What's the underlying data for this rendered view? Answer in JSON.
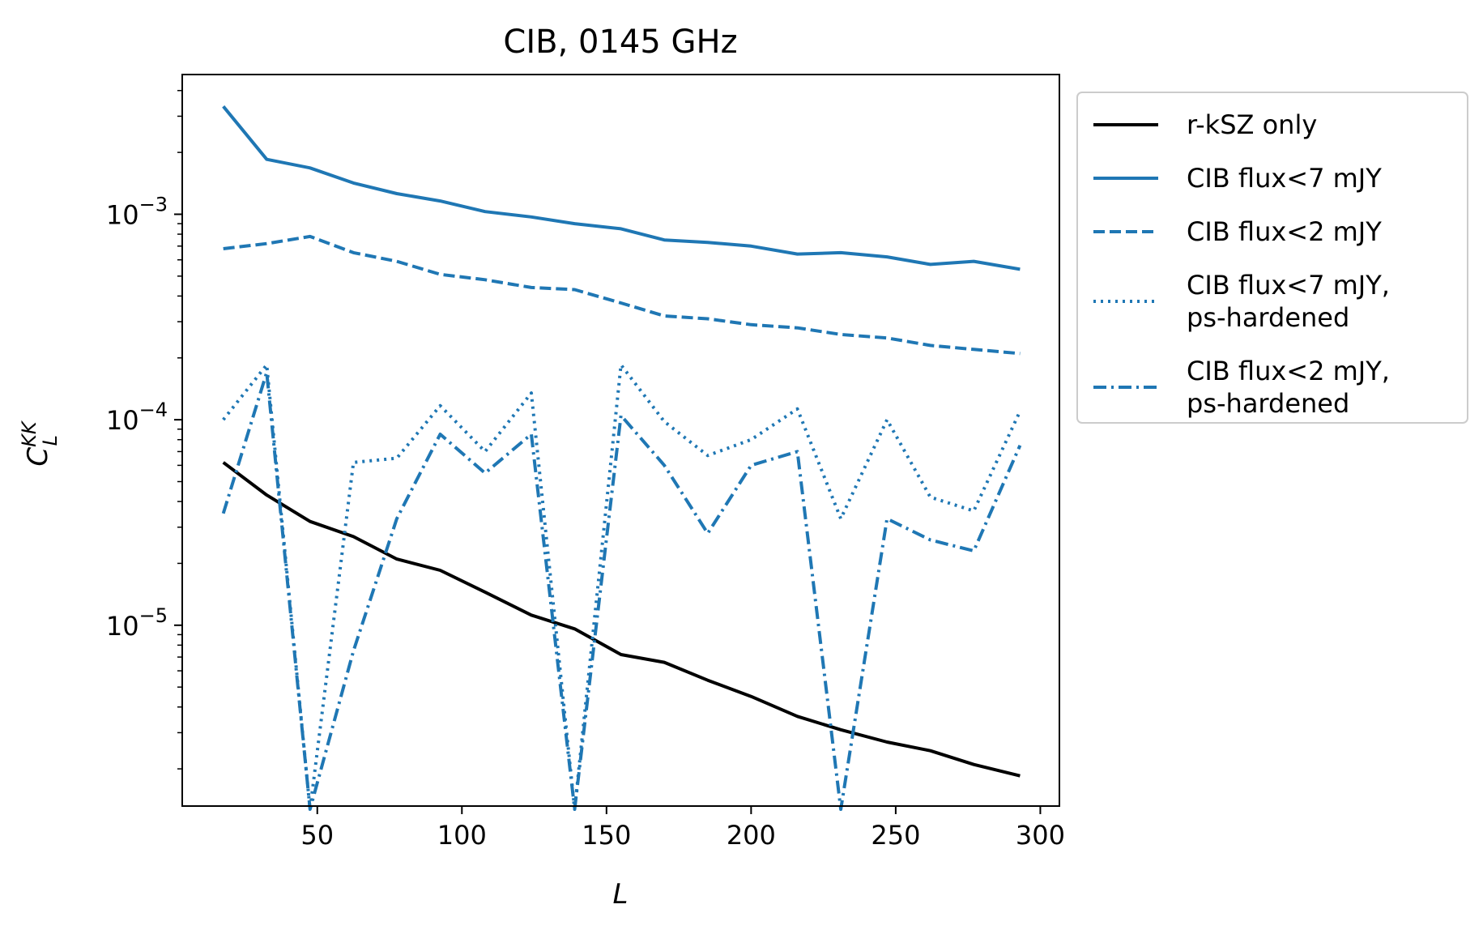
{
  "chart_data": {
    "type": "line",
    "title": "CIB, 0145 GHz",
    "xlabel": "L",
    "ylabel": {
      "base": "C",
      "sub": "L",
      "sup": "KK"
    },
    "xlim": [
      3.3,
      306.6
    ],
    "ylim_log10": [
      -5.88,
      -2.32
    ],
    "yscale": "log",
    "grid": false,
    "legend_position": "outside-upper-right",
    "x_ticks": [
      50,
      100,
      150,
      200,
      250,
      300
    ],
    "x_tick_labels": [
      "50",
      "100",
      "150",
      "200",
      "250",
      "300"
    ],
    "y_major_ticks": [
      {
        "value": 1e-05,
        "base": "10",
        "exp": "−5"
      },
      {
        "value": 0.0001,
        "base": "10",
        "exp": "−4"
      },
      {
        "value": 0.001,
        "base": "10",
        "exp": "−3"
      }
    ],
    "x": [
      17.5,
      32.5,
      47.5,
      62.5,
      77.5,
      92.5,
      108,
      124,
      139,
      155,
      170,
      185,
      200,
      216,
      231,
      247,
      262,
      277,
      293
    ],
    "series": [
      {
        "name": "r-kSZ only",
        "color": "#000000",
        "style": "solid",
        "values": [
          6.2e-05,
          4.3e-05,
          3.2e-05,
          2.7e-05,
          2.1e-05,
          1.85e-05,
          1.45e-05,
          1.12e-05,
          9.6e-06,
          7.2e-06,
          6.6e-06,
          5.4e-06,
          4.5e-06,
          3.6e-06,
          3.1e-06,
          2.7e-06,
          2.45e-06,
          2.1e-06,
          1.85e-06
        ]
      },
      {
        "name": "CIB flux<7 mJY",
        "color": "#1f77b4",
        "style": "solid",
        "values": [
          0.00335,
          0.00185,
          0.00168,
          0.00142,
          0.00126,
          0.00116,
          0.00103,
          0.00097,
          0.0009,
          0.00085,
          0.00075,
          0.00073,
          0.0007,
          0.00064,
          0.00065,
          0.00062,
          0.00057,
          0.00059,
          0.00054
        ]
      },
      {
        "name": "CIB flux<2 mJY",
        "color": "#1f77b4",
        "style": "dashed",
        "values": [
          0.00068,
          0.00072,
          0.00078,
          0.00065,
          0.00059,
          0.00051,
          0.00048,
          0.00044,
          0.00043,
          0.00037,
          0.00032,
          0.00031,
          0.00029,
          0.00028,
          0.00026,
          0.00025,
          0.00023,
          0.00022,
          0.00021
        ]
      },
      {
        "name": "CIB flux<7 mJY,\nps-hardened",
        "name_lines": [
          "CIB flux<7 mJY,",
          "ps-hardened"
        ],
        "color": "#1f77b4",
        "style": "dotted",
        "values": [
          0.0001,
          0.000185,
          null,
          6.2e-05,
          6.5e-05,
          0.000117,
          7e-05,
          0.000135,
          null,
          0.000185,
          9.8e-05,
          6.7e-05,
          8e-05,
          0.000113,
          3.3e-05,
          0.0001,
          4.2e-05,
          3.6e-05,
          0.00011
        ]
      },
      {
        "name": "CIB flux<2 mJY,\nps-hardened",
        "name_lines": [
          "CIB flux<2 mJY,",
          "ps-hardened"
        ],
        "color": "#1f77b4",
        "style": "dashdot",
        "values": [
          3.5e-05,
          0.00017,
          null,
          7.5e-06,
          3.3e-05,
          8.5e-05,
          5.5e-05,
          8.5e-05,
          null,
          0.000105,
          6e-05,
          2.8e-05,
          6e-05,
          7e-05,
          null,
          3.3e-05,
          2.6e-05,
          2.3e-05,
          7.5e-05
        ]
      }
    ]
  }
}
